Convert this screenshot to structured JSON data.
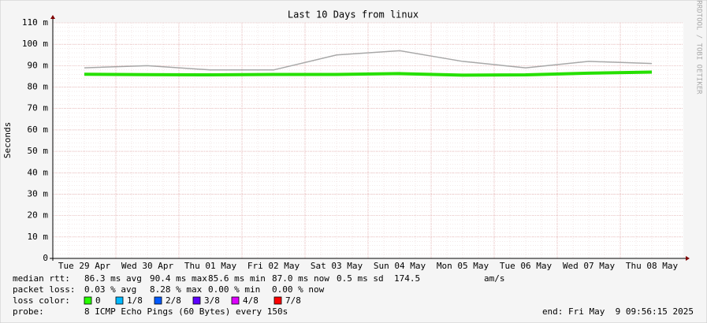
{
  "chart_data": {
    "type": "line",
    "title": "Last 10 Days from linux",
    "y_label": "Seconds",
    "side_text": "RRDTOOL / TOBI OETIKER",
    "categories": [
      "Tue 29 Apr",
      "Wed 30 Apr",
      "Thu 01 May",
      "Fri 02 May",
      "Sat 03 May",
      "Sun 04 May",
      "Mon 05 May",
      "Tue 06 May",
      "Wed 07 May",
      "Thu 08 May"
    ],
    "series": [
      {
        "name": "max",
        "color": "#a8a8a8",
        "values": [
          0.089,
          0.09,
          0.088,
          0.088,
          0.095,
          0.097,
          0.092,
          0.089,
          0.092,
          0.091
        ]
      },
      {
        "name": "median",
        "color": "#26e000",
        "values": [
          0.086,
          0.0858,
          0.0857,
          0.0859,
          0.0859,
          0.0863,
          0.0856,
          0.0857,
          0.0865,
          0.087
        ]
      }
    ],
    "ylim": [
      0,
      0.11
    ],
    "yticks": [
      {
        "value": 0,
        "label": "0"
      },
      {
        "value": 0.01,
        "label": "10 m"
      },
      {
        "value": 0.02,
        "label": "20 m"
      },
      {
        "value": 0.03,
        "label": "30 m"
      },
      {
        "value": 0.04,
        "label": "40 m"
      },
      {
        "value": 0.05,
        "label": "50 m"
      },
      {
        "value": 0.06,
        "label": "60 m"
      },
      {
        "value": 0.07,
        "label": "70 m"
      },
      {
        "value": 0.08,
        "label": "80 m"
      },
      {
        "value": 0.09,
        "label": "90 m"
      },
      {
        "value": 0.1,
        "label": "100 m"
      },
      {
        "value": 0.11,
        "label": "110 m"
      }
    ],
    "grid": true,
    "median_rtt": [
      "median rtt:",
      "86.3 ms avg",
      "90.4 ms max",
      "85.6 ms min",
      "87.0 ms now",
      "0.5 ms sd",
      "174.5",
      "am/s"
    ],
    "packet_loss": [
      "packet loss:",
      "0.03 % avg",
      "8.28 % max",
      "0.00 % min",
      "0.00 % now"
    ],
    "loss_color": {
      "label": "loss color:",
      "items": [
        {
          "label": "0",
          "color": "#26ff00"
        },
        {
          "label": "1/8",
          "color": "#00b8ff"
        },
        {
          "label": "2/8",
          "color": "#0059ff"
        },
        {
          "label": "3/8",
          "color": "#5e00ff"
        },
        {
          "label": "4/8",
          "color": "#dd00ff"
        },
        {
          "label": "7/8",
          "color": "#ff0000"
        }
      ]
    },
    "probe": [
      "probe:",
      "8 ICMP Echo Pings (60 Bytes) every 150s"
    ],
    "end": "end: Fri May  9 09:56:15 2025"
  }
}
